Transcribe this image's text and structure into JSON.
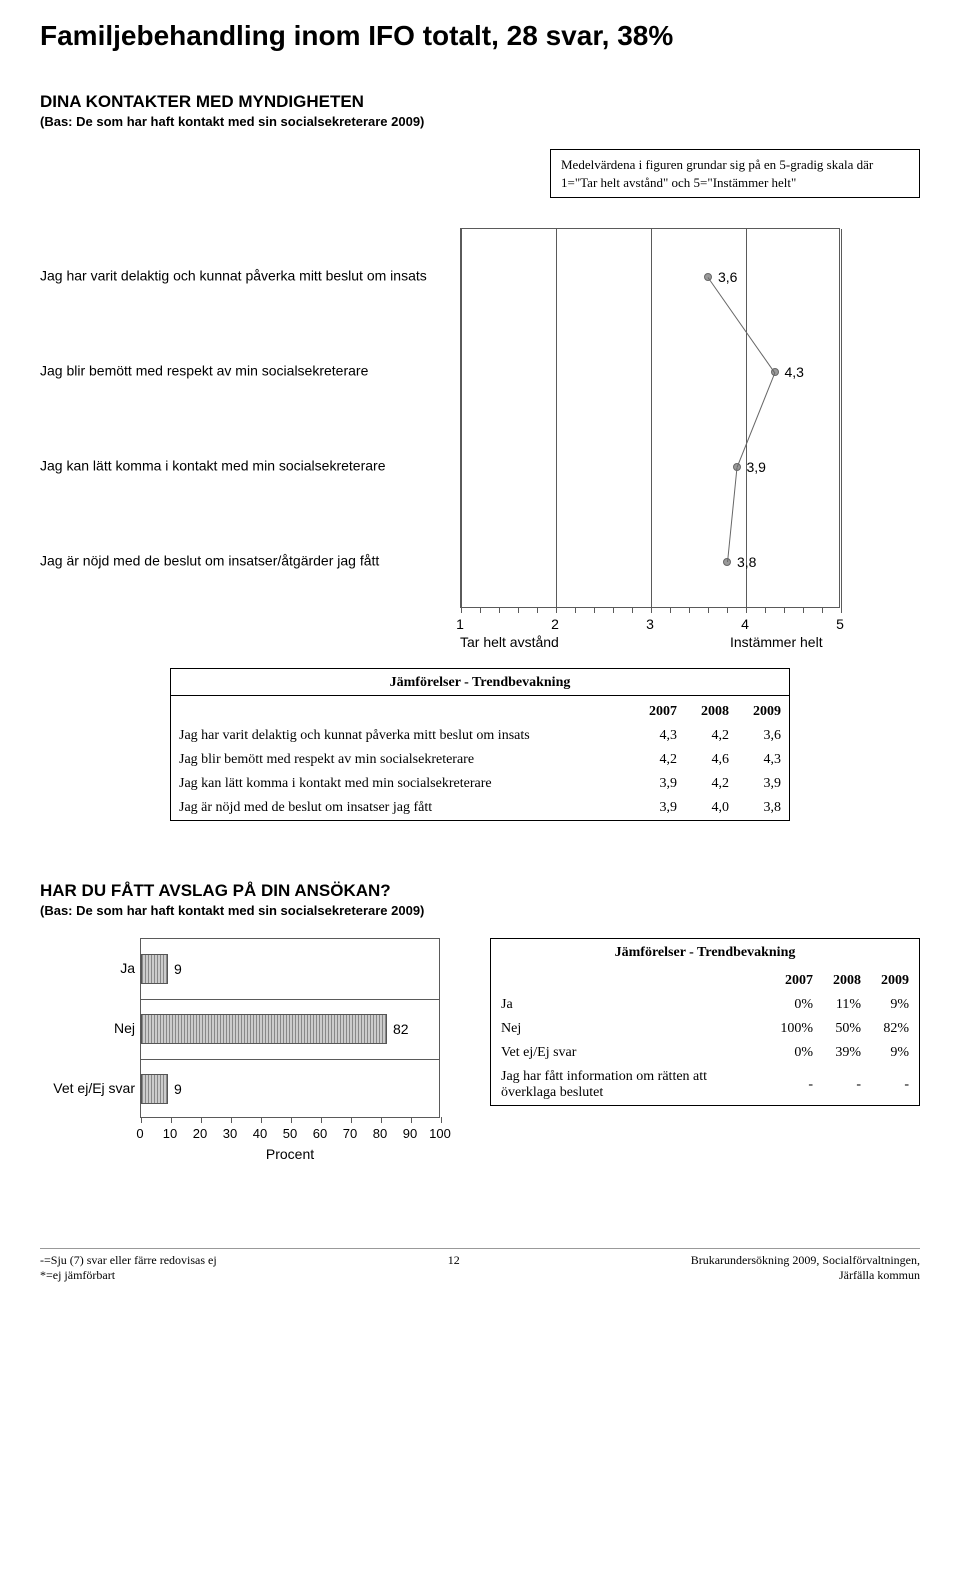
{
  "page_title": "Familjebehandling inom IFO totalt, 28 svar, 38%",
  "section1": {
    "heading": "DINA KONTAKTER MED MYNDIGHETEN",
    "sub": "(Bas: De som har haft kontakt med sin socialsekreterare 2009)",
    "note": "Medelvärdena i figuren grundar sig på en 5-gradig skala där 1=\"Tar helt avstånd\" och 5=\"Instämmer helt\""
  },
  "scale_chart": {
    "type": "dot-scale",
    "xmin": 1,
    "xmax": 5,
    "axis_left_label": "Tar helt avstånd",
    "axis_right_label": "Instämmer helt",
    "axis_ticks": [
      1,
      2,
      3,
      4,
      5
    ],
    "marker_color": "#9a9a9a",
    "marker_border": "#666666",
    "line_color": "#666666",
    "grid_color": "#5a5a5a",
    "items": [
      {
        "label": "Jag har varit delaktig och kunnat påverka mitt beslut om insats",
        "value": 3.6,
        "value_text": "3,6"
      },
      {
        "label": "Jag blir bemött med respekt av min socialsekreterare",
        "value": 4.3,
        "value_text": "4,3"
      },
      {
        "label": "Jag kan lätt komma i kontakt med min socialsekreterare",
        "value": 3.9,
        "value_text": "3,9"
      },
      {
        "label": "Jag är nöjd med de beslut om insatser/åtgärder jag fått",
        "value": 3.8,
        "value_text": "3,8"
      }
    ]
  },
  "cmp1": {
    "title": "Jämförelser - Trendbevakning",
    "years": [
      "2007",
      "2008",
      "2009"
    ],
    "rows": [
      {
        "label": "Jag har varit delaktig och kunnat påverka mitt beslut om insats",
        "cells": [
          "4,3",
          "4,2",
          "3,6"
        ]
      },
      {
        "label": "Jag blir bemött med respekt av min socialsekreterare",
        "cells": [
          "4,2",
          "4,6",
          "4,3"
        ]
      },
      {
        "label": "Jag kan lätt komma i kontakt med min socialsekreterare",
        "cells": [
          "3,9",
          "4,2",
          "3,9"
        ]
      },
      {
        "label": "Jag är nöjd med de beslut om insatser jag fått",
        "cells": [
          "3,9",
          "4,0",
          "3,8"
        ]
      }
    ]
  },
  "section2": {
    "heading": "HAR DU FÅTT AVSLAG PÅ DIN ANSÖKAN?",
    "sub": "(Bas: De som har haft kontakt med sin socialsekreterare 2009)"
  },
  "bar_chart": {
    "type": "bar-horizontal",
    "xmin": 0,
    "xmax": 100,
    "xtick_step": 10,
    "x_title": "Procent",
    "bar_fill": "repeating-linear-gradient(90deg,#888,#888 1px,#ccc 1px,#ccc 3px)",
    "bar_border": "#555555",
    "grid_color": "#5a5a5a",
    "categories": [
      {
        "label": "Ja",
        "value": 9,
        "value_text": "9"
      },
      {
        "label": "Nej",
        "value": 82,
        "value_text": "82"
      },
      {
        "label": "Vet ej/Ej svar",
        "value": 9,
        "value_text": "9"
      }
    ]
  },
  "cmp2": {
    "title": "Jämförelser - Trendbevakning",
    "years": [
      "2007",
      "2008",
      "2009"
    ],
    "rows": [
      {
        "label": "Ja",
        "cells": [
          "0%",
          "11%",
          "9%"
        ]
      },
      {
        "label": "Nej",
        "cells": [
          "100%",
          "50%",
          "82%"
        ]
      },
      {
        "label": "Vet ej/Ej svar",
        "cells": [
          "0%",
          "39%",
          "9%"
        ]
      },
      {
        "label": "Jag har fått information om rätten att överklaga beslutet",
        "cells": [
          "-",
          "-",
          "-"
        ]
      }
    ]
  },
  "footer": {
    "left_line1": "-=Sju (7) svar eller färre redovisas ej",
    "left_line2": "*=ej jämförbart",
    "page_num": "12",
    "right_line1": "Brukarundersökning 2009, Socialförvaltningen,",
    "right_line2": "Järfälla kommun"
  }
}
